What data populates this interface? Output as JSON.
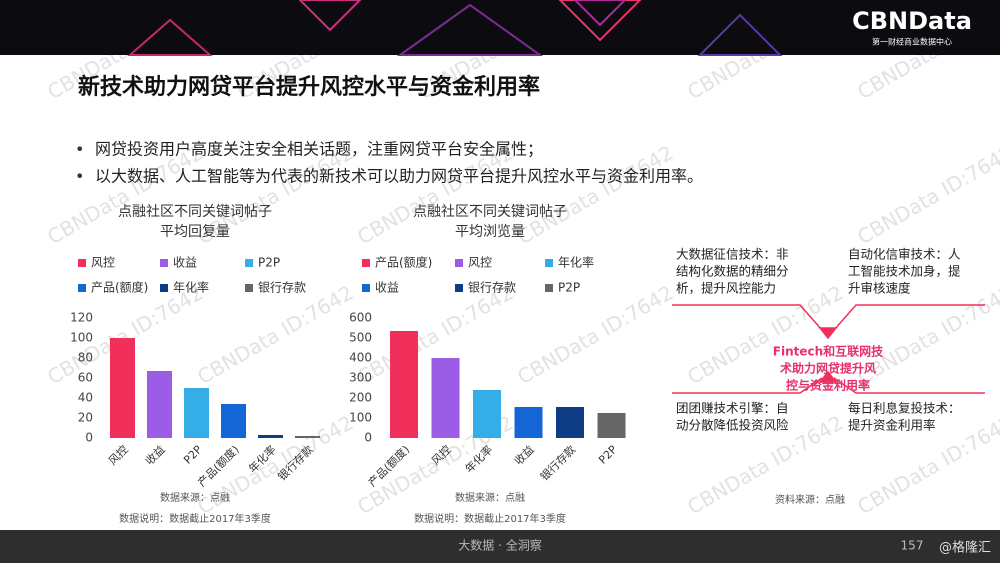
{
  "header": {
    "brand": "CBNData",
    "brand_sub": "第一财经商业数据中心"
  },
  "watermark": "CBNData ID:7642",
  "title": "新技术助力网贷平台提升风控水平与资金利用率",
  "bullets": [
    "网贷投资用户高度关注安全相关话题，注重网贷平台安全属性；",
    "以大数据、人工智能等为代表的新技术可以助力网贷平台提升风控水平与资金利用率。"
  ],
  "chart_data": [
    {
      "type": "bar",
      "title": [
        "点融社区不同关键词帖子",
        "平均回复量"
      ],
      "categories": [
        "风控",
        "收益",
        "P2P",
        "产品(额度)",
        "年化率",
        "银行存款"
      ],
      "values": [
        100,
        67,
        50,
        34,
        3,
        2
      ],
      "colors": [
        "#f0305a",
        "#9b5de5",
        "#35aee8",
        "#1466d6",
        "#0e3d86",
        "#666666"
      ],
      "ylim": [
        0,
        120
      ],
      "yticks": [
        0,
        20,
        40,
        60,
        80,
        100,
        120
      ],
      "source": "数据来源：点融",
      "note": "数据说明：数据截止2017年3季度"
    },
    {
      "type": "bar",
      "title": [
        "点融社区不同关键词帖子",
        "平均浏览量"
      ],
      "categories": [
        "产品(额度)",
        "风控",
        "年化率",
        "收益",
        "银行存款",
        "P2P"
      ],
      "values": [
        535,
        400,
        240,
        155,
        155,
        125
      ],
      "colors": [
        "#f0305a",
        "#9b5de5",
        "#35aee8",
        "#1466d6",
        "#0e3d86",
        "#666666"
      ],
      "ylim": [
        0,
        600
      ],
      "yticks": [
        0,
        100,
        200,
        300,
        400,
        500,
        600
      ],
      "source": "数据来源：点融",
      "note": "数据说明：数据截止2017年3季度"
    }
  ],
  "diagram": {
    "center": [
      "Fintech和互联网技",
      "术助力网贷提升风",
      "控与资金利用率"
    ],
    "top_left": [
      "大数据征信技术：非",
      "结构化数据的精细分",
      "析，提升风控能力"
    ],
    "top_right": [
      "自动化信审技术：人",
      "工智能技术加身，提",
      "升审核速度"
    ],
    "bottom_left": [
      "团团赚技术引擎：自",
      "动分散降低投资风险"
    ],
    "bottom_right": [
      "每日利息复投技术：",
      "提升资金利用率"
    ],
    "source": "资料来源：点融"
  },
  "footer": {
    "center": "大数据 · 全洞察",
    "page": "157",
    "credit": "@格隆汇"
  }
}
